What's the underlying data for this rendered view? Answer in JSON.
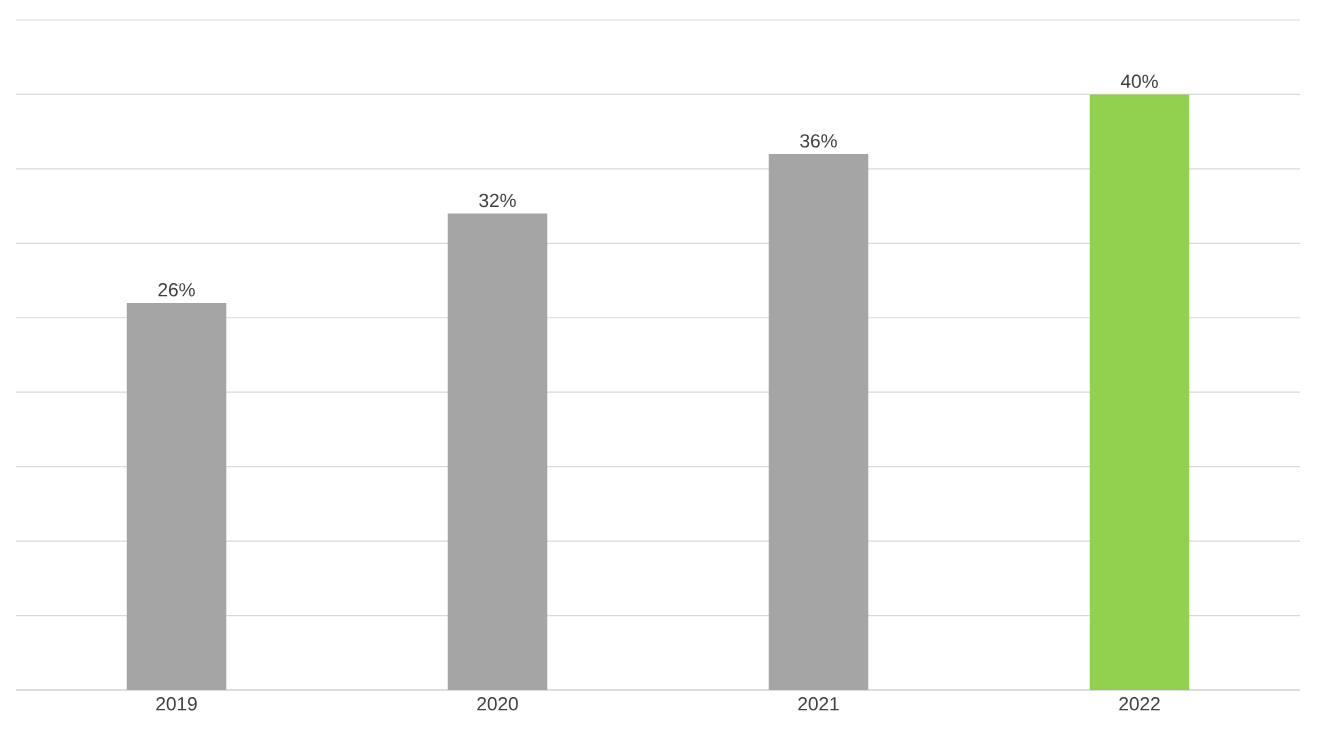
{
  "chart_data": {
    "type": "bar",
    "categories": [
      "2019",
      "2020",
      "2021",
      "2022"
    ],
    "values": [
      26,
      32,
      36,
      40
    ],
    "colors": [
      "#a5a5a5",
      "#a5a5a5",
      "#a5a5a5",
      "#92d050"
    ],
    "value_labels": [
      "26%",
      "32%",
      "36%",
      "40%"
    ],
    "tick_labels": "x",
    "grid": "y"
  }
}
